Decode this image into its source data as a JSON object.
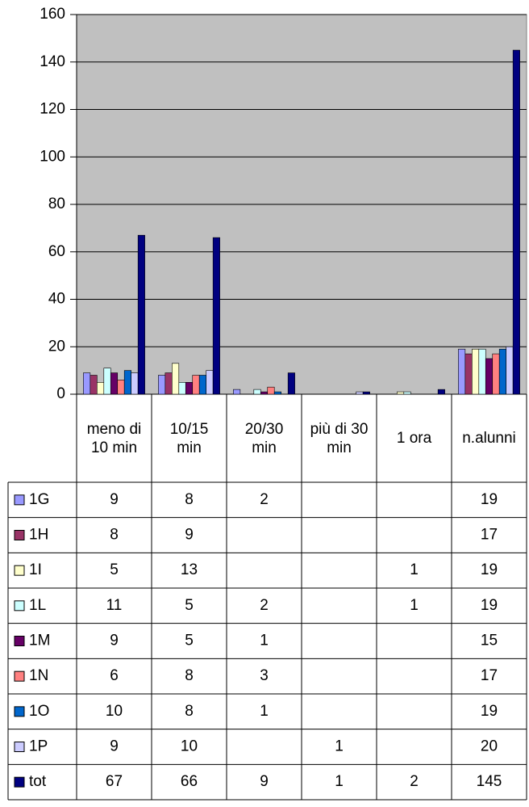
{
  "chart_data": {
    "type": "bar",
    "categories": [
      "meno di 10 min",
      "10/15 min",
      "20/30 min",
      "più di 30 min",
      "1 ora",
      "n.alunni"
    ],
    "series": [
      {
        "name": "1G",
        "color": "#9999ff",
        "values": [
          9,
          8,
          2,
          null,
          null,
          19
        ]
      },
      {
        "name": "1H",
        "color": "#993366",
        "values": [
          8,
          9,
          null,
          null,
          null,
          17
        ]
      },
      {
        "name": "1I",
        "color": "#ffffcc",
        "values": [
          5,
          13,
          null,
          null,
          1,
          19
        ]
      },
      {
        "name": "1L",
        "color": "#ccffff",
        "values": [
          11,
          5,
          2,
          null,
          1,
          19
        ]
      },
      {
        "name": "1M",
        "color": "#660066",
        "values": [
          9,
          5,
          1,
          null,
          null,
          15
        ]
      },
      {
        "name": "1N",
        "color": "#ff8080",
        "values": [
          6,
          8,
          3,
          null,
          null,
          17
        ]
      },
      {
        "name": "1O",
        "color": "#0066cc",
        "values": [
          10,
          8,
          1,
          null,
          null,
          19
        ]
      },
      {
        "name": "1P",
        "color": "#ccccff",
        "values": [
          9,
          10,
          null,
          1,
          null,
          20
        ]
      },
      {
        "name": "tot",
        "color": "#000080",
        "values": [
          67,
          66,
          9,
          1,
          2,
          145
        ]
      }
    ],
    "ylim": [
      0,
      160
    ],
    "yticks": [
      0,
      20,
      40,
      60,
      80,
      100,
      120,
      140,
      160
    ],
    "grid": true,
    "plot_background": "#c0c0c0"
  }
}
